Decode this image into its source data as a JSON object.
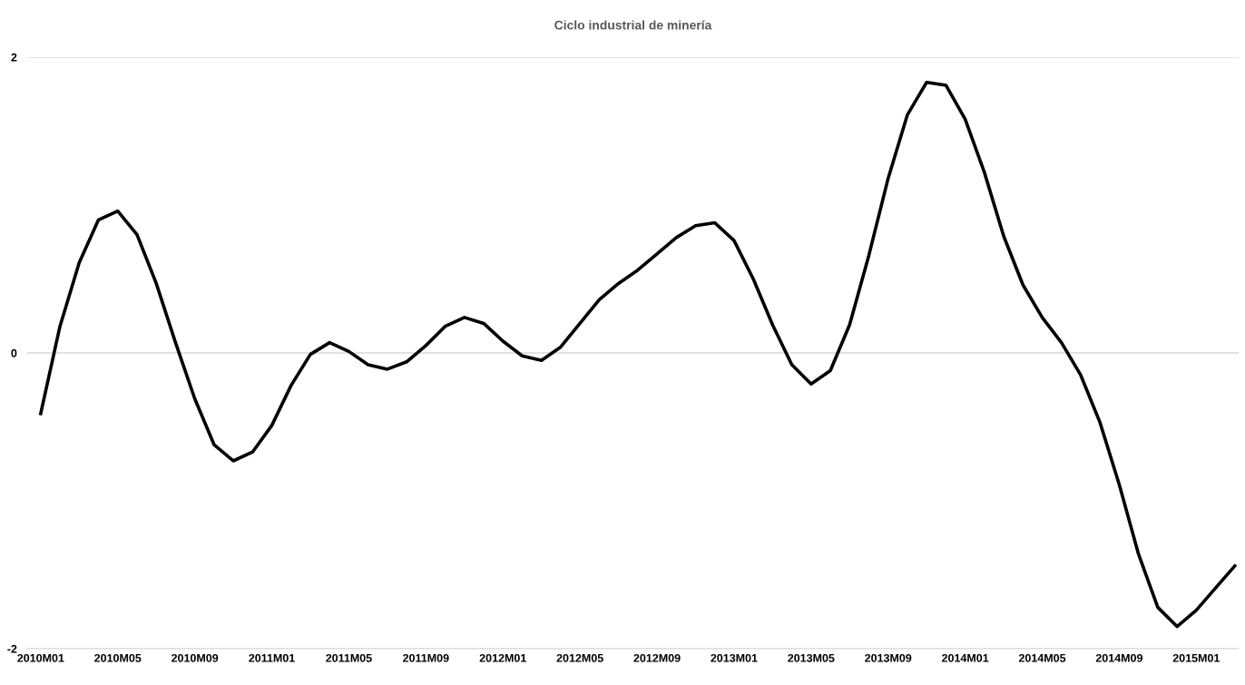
{
  "chart_data": {
    "type": "line",
    "title": "Ciclo industrial de minería",
    "categories": [
      "2010M01",
      null,
      null,
      null,
      "2010M05",
      null,
      null,
      null,
      "2010M09",
      null,
      null,
      null,
      "2011M01",
      null,
      null,
      null,
      "2011M05",
      null,
      null,
      null,
      "2011M09",
      null,
      null,
      null,
      "2012M01",
      null,
      null,
      null,
      "2012M05",
      null,
      null,
      null,
      "2012M09",
      null,
      null,
      null,
      "2013M01",
      null,
      null,
      null,
      "2013M05",
      null,
      null,
      null,
      "2013M09",
      null,
      null,
      null,
      "2014M01",
      null,
      null,
      null,
      "2014M05",
      null,
      null,
      null,
      "2014M09",
      null,
      null,
      null,
      "2015M01",
      null,
      null
    ],
    "series": [
      {
        "color": "#000000",
        "values": [
          -0.41,
          0.18,
          0.61,
          0.9,
          0.96,
          0.8,
          0.47,
          0.07,
          -0.31,
          -0.62,
          -0.73,
          -0.67,
          -0.49,
          -0.22,
          -0.01,
          0.07,
          0.01,
          -0.08,
          -0.11,
          -0.06,
          0.05,
          0.18,
          0.24,
          0.2,
          0.08,
          -0.02,
          -0.05,
          0.04,
          0.2,
          0.36,
          0.47,
          0.56,
          0.67,
          0.78,
          0.86,
          0.88,
          0.76,
          0.5,
          0.19,
          -0.08,
          -0.21,
          -0.12,
          0.19,
          0.66,
          1.18,
          1.61,
          1.83,
          1.81,
          1.58,
          1.22,
          0.79,
          0.46,
          0.24,
          0.07,
          -0.15,
          -0.47,
          -0.89,
          -1.36,
          -1.72,
          -1.85,
          -1.74,
          -1.59,
          -1.44
        ]
      }
    ],
    "ylim": [
      -2,
      2
    ],
    "yticks": [
      {
        "value": -2,
        "label": "-2"
      },
      0,
      2
    ],
    "grid": "y",
    "marker": "none",
    "line_style": "solid"
  }
}
